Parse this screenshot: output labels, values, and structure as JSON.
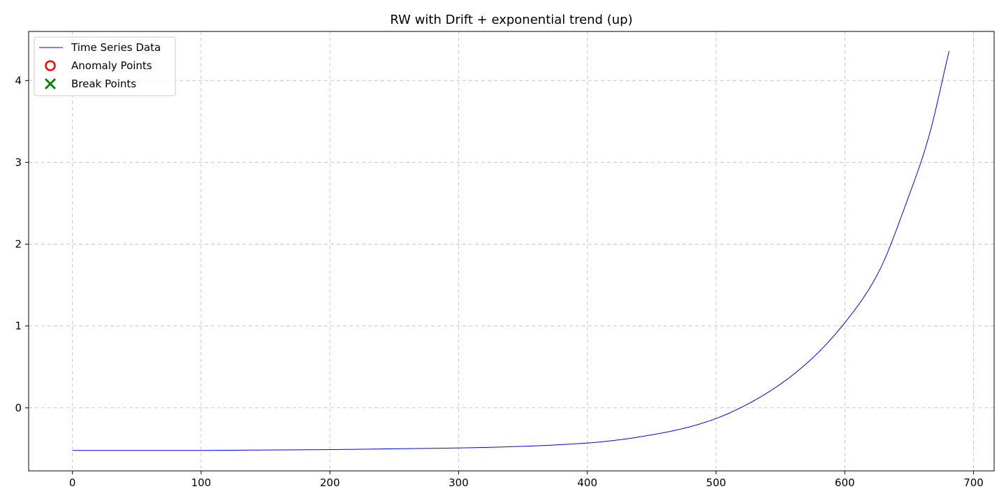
{
  "chart_data": {
    "type": "line",
    "title": "RW with Drift + exponential trend (up)",
    "xlabel": "",
    "ylabel": "",
    "xlim": [
      -34,
      716
    ],
    "ylim": [
      -0.77,
      4.6
    ],
    "x_ticks": [
      0,
      100,
      200,
      300,
      400,
      500,
      600,
      700
    ],
    "y_ticks": [
      0,
      1,
      2,
      3,
      4
    ],
    "grid": true,
    "legend_position": "upper-left",
    "legend": [
      {
        "label": "Time Series Data",
        "marker": "line",
        "color": "#0000ff"
      },
      {
        "label": "Anomaly Points",
        "marker": "circle",
        "color": "#ff0000"
      },
      {
        "label": "Break Points",
        "marker": "x",
        "color": "#008000"
      }
    ],
    "series": [
      {
        "name": "Time Series Data",
        "color": "#0000ff",
        "x": [
          0,
          50,
          100,
          150,
          200,
          250,
          300,
          350,
          400,
          425,
          450,
          475,
          500,
          525,
          550,
          575,
          600,
          625,
          650,
          665,
          681
        ],
        "y": [
          -0.52,
          -0.52,
          -0.52,
          -0.515,
          -0.51,
          -0.5,
          -0.49,
          -0.47,
          -0.43,
          -0.39,
          -0.33,
          -0.25,
          -0.13,
          0.05,
          0.29,
          0.61,
          1.04,
          1.62,
          2.6,
          3.3,
          4.36
        ]
      }
    ],
    "anomaly_points": [],
    "break_points": []
  }
}
